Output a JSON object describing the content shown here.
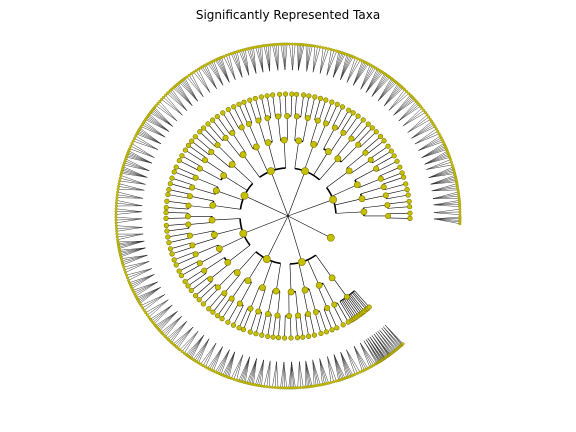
{
  "figure": {
    "title": "Significantly Represented Taxa"
  },
  "tree": {
    "type": "radial-cladogram",
    "node_color": "#c6c000",
    "node_edge_color": "#7a7400",
    "branch_color": "#000000",
    "level_count": 5,
    "nodes_per_level": [
      1,
      8,
      28,
      55,
      120
    ],
    "tip_count": 420
  }
}
